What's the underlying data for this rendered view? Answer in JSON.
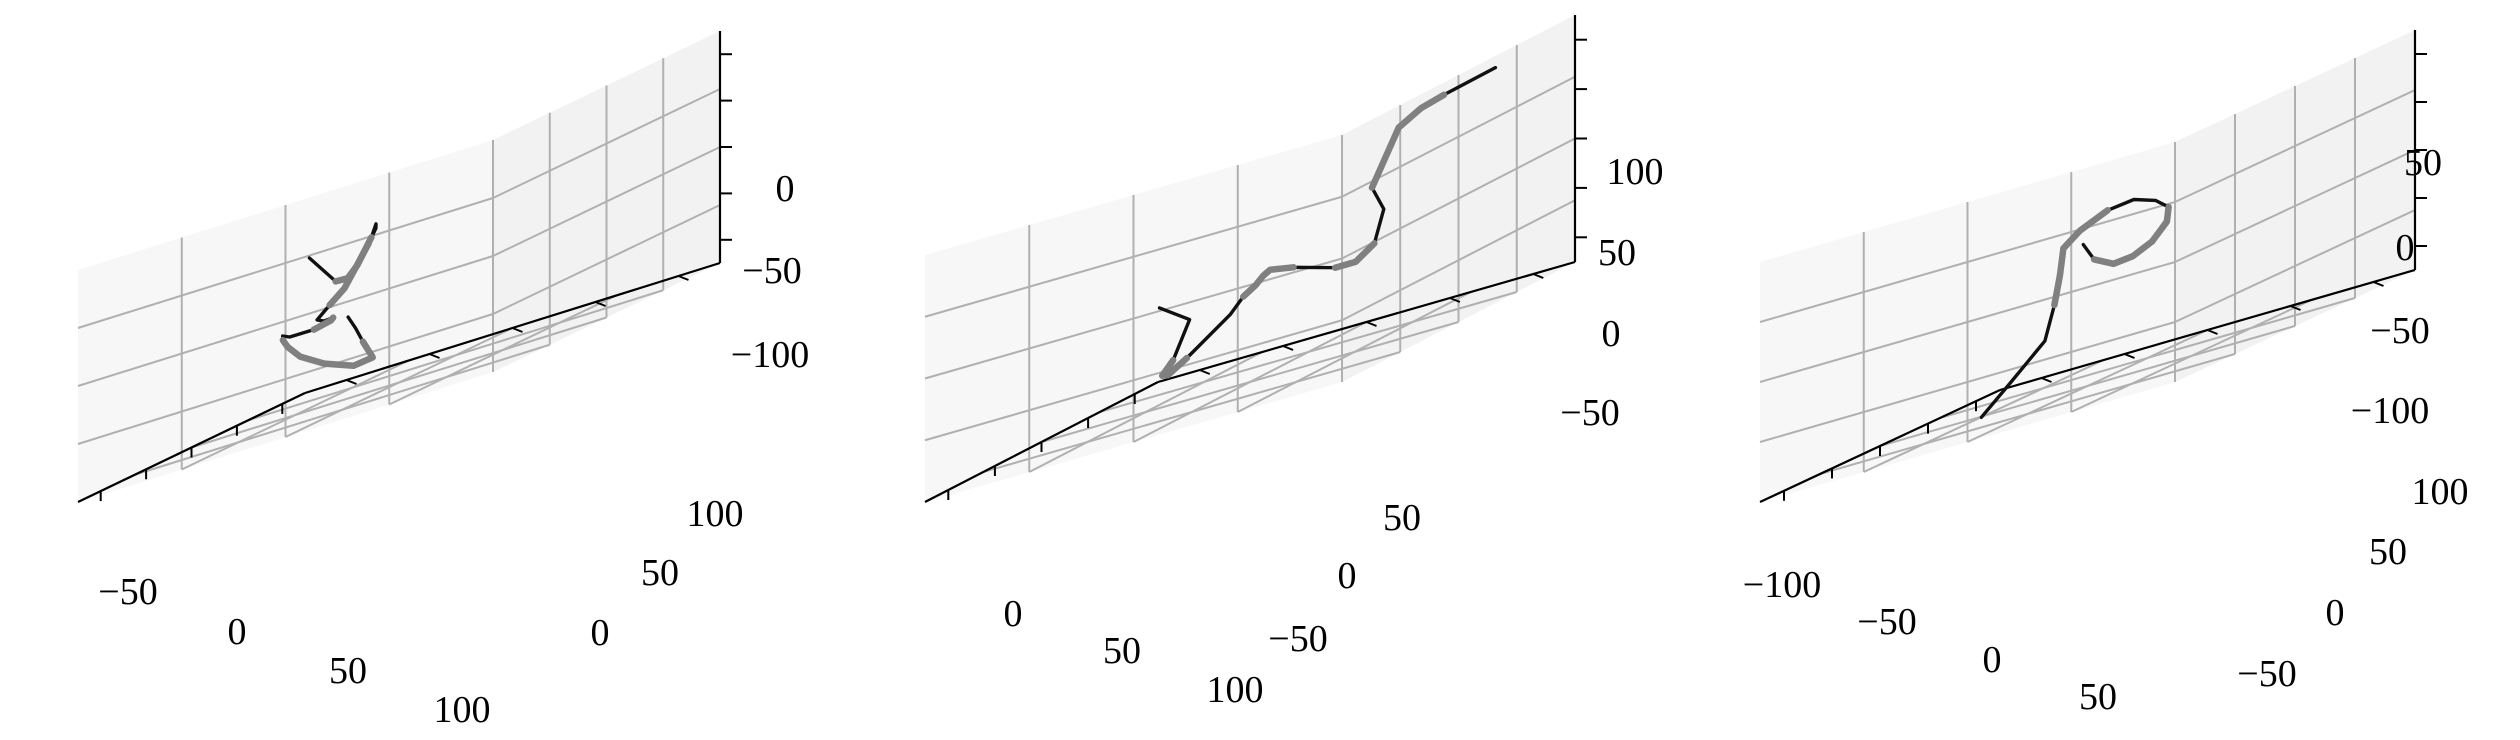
{
  "chart_data": [
    {
      "type": "line3d",
      "title": "",
      "xlabel": "",
      "ylabel": "",
      "zlabel": "",
      "grid": true,
      "x_ticks": [
        "−50",
        "0",
        "50",
        "100"
      ],
      "y_ticks": [
        "0",
        "50",
        "100"
      ],
      "z_ticks": [
        "0",
        "−50",
        "−100"
      ],
      "xlim": [
        -80,
        110
      ],
      "ylim": [
        -30,
        140
      ],
      "zlim": [
        -140,
        40
      ],
      "colors": {
        "path": "#111111",
        "highlight": "#808080",
        "pane": "#f2f2f2",
        "grid": "#b0b0b0"
      },
      "path": [
        [
          -60,
          55,
          -10
        ],
        [
          -38,
          55,
          -38
        ],
        [
          -28,
          55,
          -40
        ],
        [
          -18,
          54,
          -34
        ],
        [
          -2,
          52,
          -18
        ],
        [
          6,
          50,
          -10
        ],
        [
          10,
          48,
          -14
        ],
        [
          10,
          45,
          -24
        ],
        [
          6,
          42,
          -38
        ],
        [
          4,
          38,
          -52
        ],
        [
          8,
          30,
          -62
        ],
        [
          18,
          20,
          -72
        ],
        [
          40,
          12,
          -78
        ],
        [
          56,
          8,
          -80
        ],
        [
          58,
          6,
          -82
        ],
        [
          52,
          2,
          -84
        ],
        [
          40,
          -2,
          -82
        ],
        [
          30,
          0,
          -78
        ],
        [
          22,
          4,
          -80
        ],
        [
          18,
          8,
          -86
        ],
        [
          16,
          14,
          -96
        ],
        [
          20,
          22,
          -108
        ],
        [
          28,
          30,
          -118
        ],
        [
          40,
          32,
          -118
        ],
        [
          44,
          26,
          -104
        ],
        [
          46,
          22,
          -92
        ],
        [
          48,
          18,
          -82
        ]
      ],
      "highlight_segments": [
        [
          1,
          4
        ],
        [
          7,
          10
        ],
        [
          13,
          15
        ],
        [
          18,
          21
        ],
        [
          21,
          24
        ]
      ]
    },
    {
      "type": "line3d",
      "title": "",
      "xlabel": "",
      "ylabel": "",
      "zlabel": "",
      "grid": true,
      "x_ticks": [
        "0",
        "50",
        "100"
      ],
      "y_ticks": [
        "50",
        "0",
        "−50"
      ],
      "z_ticks": [
        "100",
        "50",
        "0",
        "−50"
      ],
      "xlim": [
        -40,
        130
      ],
      "ylim": [
        -80,
        90
      ],
      "zlim": [
        -70,
        130
      ],
      "colors": {
        "path": "#111111",
        "highlight": "#808080",
        "pane": "#f2f2f2",
        "grid": "#b0b0b0"
      },
      "path": [
        [
          -30,
          10,
          30
        ],
        [
          -8,
          10,
          8
        ],
        [
          -20,
          10,
          -18
        ],
        [
          -28,
          10,
          -26
        ],
        [
          -24,
          10,
          -28
        ],
        [
          -10,
          10,
          -22
        ],
        [
          18,
          12,
          -4
        ],
        [
          24,
          14,
          6
        ],
        [
          26,
          18,
          12
        ],
        [
          24,
          22,
          18
        ],
        [
          22,
          26,
          22
        ],
        [
          32,
          30,
          16
        ],
        [
          48,
          38,
          2
        ],
        [
          56,
          42,
          0
        ],
        [
          66,
          44,
          8
        ],
        [
          80,
          40,
          30
        ],
        [
          100,
          24,
          45
        ],
        [
          98,
          36,
          88
        ],
        [
          100,
          44,
          98
        ],
        [
          106,
          50,
          102
        ],
        [
          122,
          62,
          108
        ]
      ],
      "highlight_segments": [
        [
          2,
          5
        ],
        [
          7,
          11
        ],
        [
          12,
          14
        ],
        [
          16,
          19
        ]
      ]
    },
    {
      "type": "line3d",
      "title": "",
      "xlabel": "",
      "ylabel": "",
      "zlabel": "",
      "grid": true,
      "x_ticks": [
        "−100",
        "−50",
        "0",
        "50"
      ],
      "y_ticks": [
        "100",
        "50",
        "0",
        "−50"
      ],
      "z_ticks": [
        "50",
        "0",
        "−50",
        "−100"
      ],
      "xlim": [
        -130,
        80
      ],
      "ylim": [
        -80,
        130
      ],
      "zlim": [
        -120,
        80
      ],
      "colors": {
        "path": "#111111",
        "highlight": "#808080",
        "pane": "#f2f2f2",
        "grid": "#b0b0b0"
      },
      "path": [
        [
          -40,
          -20,
          -118
        ],
        [
          -34,
          -8,
          -96
        ],
        [
          -26,
          4,
          -72
        ],
        [
          -28,
          10,
          -44
        ],
        [
          -30,
          14,
          -20
        ],
        [
          -34,
          18,
          2
        ],
        [
          -30,
          24,
          12
        ],
        [
          -16,
          30,
          20
        ],
        [
          0,
          34,
          20
        ],
        [
          12,
          38,
          12
        ],
        [
          20,
          40,
          2
        ],
        [
          22,
          38,
          -10
        ],
        [
          16,
          34,
          -22
        ],
        [
          6,
          30,
          -28
        ],
        [
          -4,
          26,
          -28
        ],
        [
          -14,
          22,
          -18
        ],
        [
          -20,
          20,
          -2
        ]
      ],
      "highlight_segments": [
        [
          3,
          5
        ],
        [
          5,
          7
        ],
        [
          10,
          12
        ],
        [
          12,
          15
        ]
      ]
    }
  ]
}
